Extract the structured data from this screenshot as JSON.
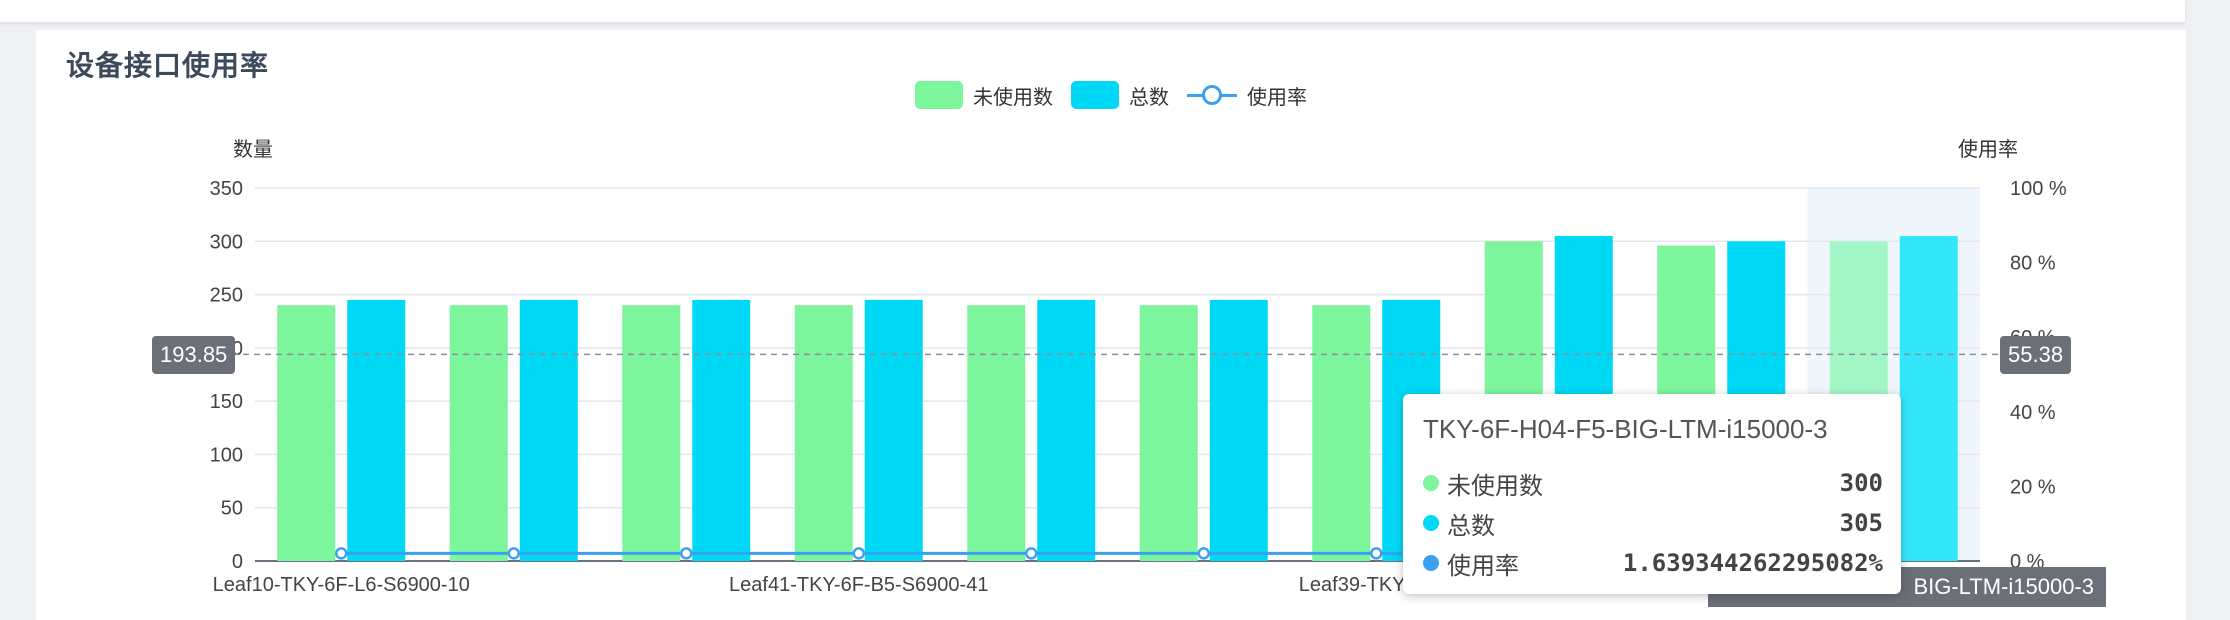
{
  "page": {
    "title": "设备接口使用率"
  },
  "legend": {
    "unused": "未使用数",
    "total": "总数",
    "rate": "使用率"
  },
  "axes": {
    "left_name": "数量",
    "right_name": "使用率"
  },
  "colors": {
    "unused": "#7df59c",
    "total": "#00d9f5",
    "rate": "#3aa1f2",
    "highlight_unused": "#a3f7c7",
    "highlight_total": "#33e6fa"
  },
  "chart_data": {
    "type": "bar",
    "title": "设备接口使用率",
    "xlabel": "",
    "ylabel": "数量",
    "y2label": "使用率",
    "ylim": [
      0,
      350
    ],
    "y2lim": [
      0,
      100
    ],
    "yticks": [
      "0",
      "50",
      "100",
      "150",
      "200",
      "250",
      "300",
      "350"
    ],
    "y2ticks": [
      "0 %",
      "20 %",
      "40 %",
      "60 %",
      "80 %",
      "100 %"
    ],
    "categories": [
      "Leaf10-TKY-6F-L6-S6900-10",
      "",
      "",
      "Leaf41-TKY-6F-B5-S6900-41",
      "",
      "",
      "Leaf39-TKY-6F-B",
      "",
      "",
      "BIG-LTM-i15000-3"
    ],
    "series": [
      {
        "name": "未使用数",
        "type": "bar",
        "axis": "left",
        "values": [
          240,
          240,
          240,
          240,
          240,
          240,
          240,
          300,
          296,
          300
        ]
      },
      {
        "name": "总数",
        "type": "bar",
        "axis": "left",
        "values": [
          245,
          245,
          245,
          245,
          245,
          245,
          245,
          305,
          300,
          305
        ]
      },
      {
        "name": "使用率",
        "type": "line",
        "axis": "right",
        "values": [
          2.04,
          2.04,
          2.04,
          2.04,
          2.04,
          2.04,
          2.04,
          1.64,
          1.33,
          1.64
        ]
      }
    ],
    "mark_line": {
      "left_value": "193.85",
      "right_value": "55.38",
      "y": 193.85
    },
    "highlight_index": 9,
    "grid": true,
    "legend_position": "top-center"
  },
  "tooltip": {
    "title": "TKY-6F-H04-F5-BIG-LTM-i15000-3",
    "rows": [
      {
        "label": "未使用数",
        "value": "300"
      },
      {
        "label": "总数",
        "value": "305"
      },
      {
        "label": "使用率",
        "value": "1.639344262295082%"
      }
    ]
  }
}
